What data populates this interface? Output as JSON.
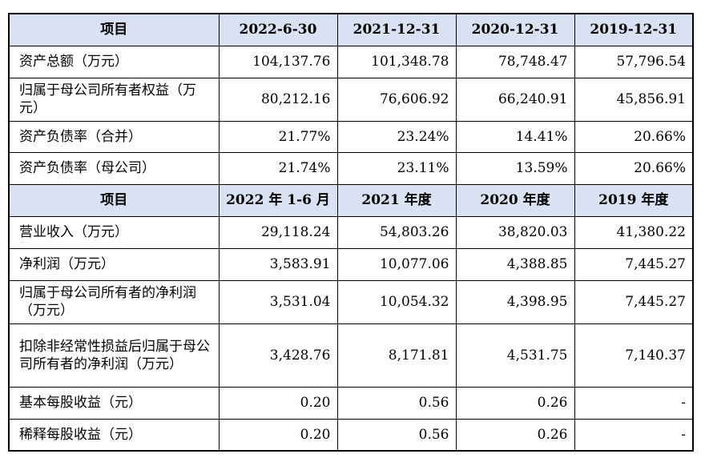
{
  "header1": {
    "item": "项目",
    "cols": [
      "2022-6-30",
      "2021-12-31",
      "2020-12-31",
      "2019-12-31"
    ]
  },
  "balance_rows": [
    {
      "label": "资产总额（万元）",
      "values": [
        "104,137.76",
        "101,348.78",
        "78,748.47",
        "57,796.54"
      ]
    },
    {
      "label": "归属于母公司所有者权益（万元）",
      "values": [
        "80,212.16",
        "76,606.92",
        "66,240.91",
        "45,856.91"
      ]
    },
    {
      "label": "资产负债率（合并）",
      "values": [
        "21.77%",
        "23.24%",
        "14.41%",
        "20.66%"
      ]
    },
    {
      "label": "资产负债率（母公司）",
      "values": [
        "21.74%",
        "23.11%",
        "13.59%",
        "20.66%"
      ]
    }
  ],
  "header2": {
    "item": "项目",
    "cols": [
      "2022 年 1-6 月",
      "2021 年度",
      "2020 年度",
      "2019 年度"
    ]
  },
  "income_rows": [
    {
      "label": "营业收入（万元）",
      "values": [
        "29,118.24",
        "54,803.26",
        "38,820.03",
        "41,380.22"
      ]
    },
    {
      "label": "净利润（万元）",
      "values": [
        "3,583.91",
        "10,077.06",
        "4,388.85",
        "7,445.27"
      ]
    },
    {
      "label": "归属于母公司所有者的净利润（万元）",
      "values": [
        "3,531.04",
        "10,054.32",
        "4,398.95",
        "7,445.27"
      ]
    },
    {
      "label": "扣除非经常性损益后归属于母公司所有者的净利润（万元）",
      "values": [
        "3,428.76",
        "8,171.81",
        "4,531.75",
        "7,140.37"
      ]
    },
    {
      "label": "基本每股收益（元）",
      "values": [
        "0.20",
        "0.56",
        "0.26",
        "-"
      ]
    },
    {
      "label": "稀释每股收益（元）",
      "values": [
        "0.20",
        "0.56",
        "0.26",
        "-"
      ]
    }
  ]
}
